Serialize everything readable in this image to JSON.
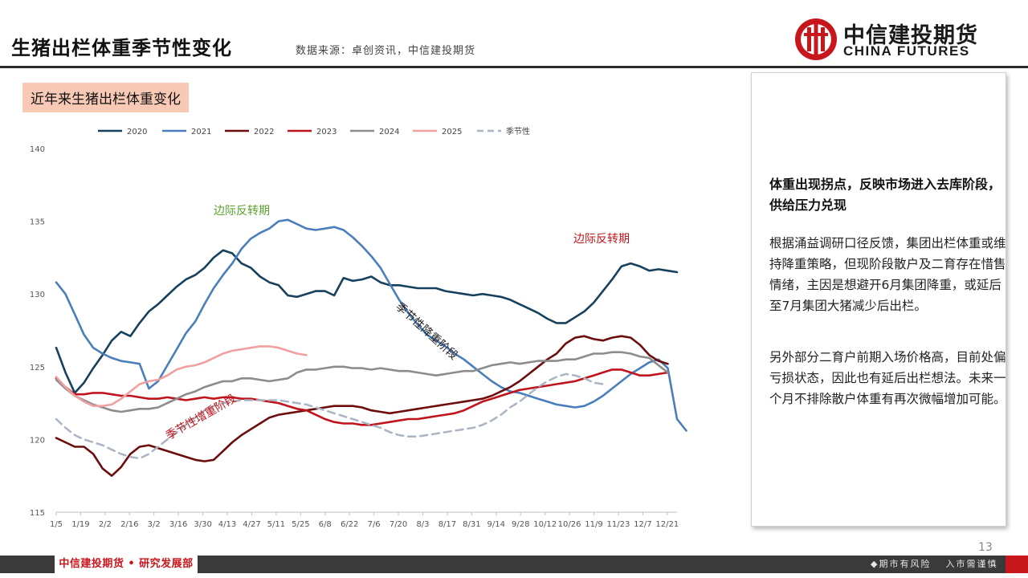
{
  "header": {
    "title": "生猪出栏体重季节性变化",
    "source": "数据来源：卓创资讯，中信建投期货"
  },
  "logo": {
    "cn": "中信建投期货",
    "en": "CHINA FUTURES",
    "color": "#c8161d"
  },
  "chart_subtitle": "近年来生猪出栏体重变化",
  "chart_data": {
    "type": "line",
    "ylim": [
      115,
      140
    ],
    "yticks": [
      "115",
      "120",
      "125",
      "130",
      "135",
      "140"
    ],
    "x_tick_labels": [
      "1/5",
      "1/19",
      "2/2",
      "2/16",
      "3/2",
      "3/16",
      "3/30",
      "4/13",
      "4/27",
      "5/11",
      "5/25",
      "6/8",
      "6/22",
      "7/6",
      "7/20",
      "8/3",
      "8/17",
      "8/31",
      "9/14",
      "9/28",
      "10/12",
      "10/26",
      "11/9",
      "11/23",
      "12/7",
      "12/21"
    ],
    "legend_position": "top",
    "series": [
      {
        "name": "2020",
        "color": "#16415e",
        "dashed": false,
        "values": [
          126.3,
          124.6,
          123.2,
          123.9,
          124.9,
          125.8,
          126.8,
          127.4,
          127.1,
          128.0,
          128.8,
          129.3,
          129.9,
          130.5,
          131.0,
          131.3,
          131.8,
          132.5,
          133.0,
          132.8,
          132.1,
          131.8,
          131.2,
          130.8,
          130.6,
          129.9,
          129.8,
          130.0,
          130.2,
          130.2,
          129.9,
          131.1,
          130.9,
          131.0,
          131.2,
          130.8,
          130.6,
          130.6,
          130.5,
          130.4,
          130.4,
          130.4,
          130.2,
          130.1,
          130.0,
          129.9,
          130.0,
          129.9,
          129.8,
          129.6,
          129.3,
          129.0,
          128.7,
          128.3,
          128.0,
          128.0,
          128.4,
          128.8,
          129.4,
          130.2,
          131.0,
          131.9,
          132.1,
          131.9,
          131.6,
          131.7,
          131.6,
          131.5
        ]
      },
      {
        "name": "2021",
        "color": "#4a7ebb",
        "dashed": false,
        "values": [
          130.8,
          130.0,
          128.6,
          127.2,
          126.3,
          125.9,
          125.6,
          125.4,
          125.3,
          125.2,
          123.5,
          124.0,
          125.1,
          126.2,
          127.3,
          128.1,
          129.3,
          130.4,
          131.3,
          132.1,
          133.1,
          133.8,
          134.2,
          134.5,
          135.0,
          135.1,
          134.8,
          134.5,
          134.4,
          134.5,
          134.6,
          134.4,
          133.9,
          133.3,
          132.6,
          131.8,
          130.7,
          129.6,
          128.7,
          127.9,
          127.2,
          126.8,
          126.4,
          125.9,
          125.5,
          125.0,
          124.5,
          124.0,
          123.6,
          123.3,
          123.2,
          123.0,
          122.8,
          122.6,
          122.4,
          122.3,
          122.2,
          122.3,
          122.6,
          123.0,
          123.5,
          124.0,
          124.5,
          124.9,
          125.3,
          125.5,
          124.9,
          121.4,
          120.6
        ]
      },
      {
        "name": "2022",
        "color": "#6b0d0d",
        "dashed": false,
        "values": [
          120.1,
          119.8,
          119.5,
          119.5,
          119.0,
          118.0,
          117.5,
          118.1,
          119.0,
          119.5,
          119.6,
          119.4,
          119.2,
          119.0,
          118.8,
          118.6,
          118.5,
          118.6,
          119.2,
          119.8,
          120.3,
          120.7,
          121.1,
          121.5,
          121.7,
          121.8,
          121.9,
          122.0,
          122.1,
          122.2,
          122.3,
          122.3,
          122.3,
          122.2,
          122.0,
          121.9,
          121.8,
          121.9,
          122.0,
          122.1,
          122.2,
          122.3,
          122.4,
          122.5,
          122.6,
          122.7,
          122.8,
          123.0,
          123.3,
          123.6,
          124.0,
          124.5,
          125.0,
          125.5,
          125.9,
          126.6,
          127.0,
          127.1,
          126.9,
          126.8,
          127.0,
          127.1,
          127.0,
          126.5,
          125.8,
          125.4,
          125.2
        ]
      },
      {
        "name": "2023",
        "color": "#c0141c",
        "dashed": false,
        "values": [
          124.2,
          123.6,
          123.1,
          123.1,
          123.2,
          123.2,
          123.1,
          123.0,
          123.0,
          122.9,
          122.8,
          122.8,
          122.9,
          122.8,
          122.7,
          122.8,
          122.9,
          122.8,
          122.9,
          122.9,
          122.8,
          122.8,
          122.7,
          122.6,
          122.5,
          122.3,
          122.1,
          122.0,
          121.7,
          121.4,
          121.2,
          121.1,
          121.1,
          121.0,
          121.0,
          121.1,
          121.2,
          121.3,
          121.4,
          121.4,
          121.5,
          121.6,
          121.7,
          121.8,
          122.0,
          122.3,
          122.6,
          122.8,
          123.0,
          123.2,
          123.4,
          123.5,
          123.6,
          123.7,
          123.8,
          123.9,
          124.0,
          124.2,
          124.4,
          124.6,
          124.8,
          124.8,
          124.6,
          124.4,
          124.4,
          124.5,
          124.6
        ]
      },
      {
        "name": "2024",
        "color": "#8c8c8c",
        "dashed": false,
        "values": [
          124.1,
          123.5,
          123.0,
          122.7,
          122.4,
          122.2,
          122.0,
          121.9,
          122.0,
          122.1,
          122.1,
          122.2,
          122.5,
          122.8,
          123.1,
          123.3,
          123.6,
          123.8,
          124.0,
          124.0,
          124.2,
          124.2,
          124.1,
          124.0,
          124.1,
          124.2,
          124.6,
          124.8,
          124.8,
          124.9,
          125.0,
          125.0,
          124.9,
          124.9,
          124.8,
          124.9,
          124.8,
          124.7,
          124.7,
          124.6,
          124.5,
          124.4,
          124.5,
          124.6,
          124.7,
          124.7,
          124.9,
          125.1,
          125.2,
          125.3,
          125.2,
          125.3,
          125.4,
          125.4,
          125.4,
          125.5,
          125.5,
          125.7,
          125.9,
          125.9,
          126.0,
          126.0,
          125.9,
          125.7,
          125.6,
          125.1,
          124.6
        ]
      },
      {
        "name": "2025",
        "color": "#f0a0a0",
        "dashed": false,
        "values": [
          124.3,
          123.6,
          123.0,
          122.6,
          122.3,
          122.3,
          122.4,
          122.8,
          123.3,
          123.8,
          124.0,
          124.1,
          124.4,
          124.8,
          125.0,
          125.1,
          125.3,
          125.6,
          125.9,
          126.1,
          126.2,
          126.3,
          126.4,
          126.4,
          126.3,
          126.1,
          125.9,
          125.8
        ]
      },
      {
        "name": "季节性",
        "color": "#aab4c2",
        "dashed": true,
        "values": [
          121.4,
          120.8,
          120.3,
          120.0,
          119.8,
          119.6,
          119.3,
          119.0,
          118.8,
          118.7,
          119.0,
          119.5,
          120.0,
          120.5,
          121.0,
          121.5,
          122.0,
          122.3,
          122.5,
          122.6,
          122.7,
          122.7,
          122.7,
          122.7,
          122.7,
          122.6,
          122.5,
          122.4,
          122.2,
          122.0,
          121.8,
          121.6,
          121.4,
          121.2,
          121.0,
          120.8,
          120.5,
          120.3,
          120.2,
          120.2,
          120.3,
          120.4,
          120.5,
          120.6,
          120.7,
          120.8,
          121.0,
          121.3,
          121.7,
          122.2,
          122.6,
          123.1,
          123.6,
          124.0,
          124.3,
          124.5,
          124.4,
          124.2,
          123.9,
          123.8
        ]
      }
    ],
    "annotations": [
      {
        "text": "边际反转期",
        "color": "#5aa02c"
      },
      {
        "text": "季节性降重阶段",
        "color": "#222222"
      },
      {
        "text": "边际反转期",
        "color": "#c0141c"
      },
      {
        "text": "季节性增重阶段",
        "color": "#c0141c"
      }
    ]
  },
  "panel": {
    "headline": "体重出现拐点，反映市场进入去库阶段，供给压力兑现",
    "para1": "根据涌益调研口径反馈，集团出栏体重或维持降重策略，但现阶段散户及二育存在惜售情绪，主因是想避开6月集团降重，或延后至7月集团大猪减少后出栏。",
    "para2": "另外部分二育户前期入场价格高，目前处偏亏损状态，因此也有延后出栏想法。未来一个月不排除散户体重有再次微幅增加可能。"
  },
  "page_number": "13",
  "footer": {
    "left": "中信建投期货 • 研究发展部",
    "right_1": "期市有风险",
    "right_2": "入市需谨慎"
  }
}
